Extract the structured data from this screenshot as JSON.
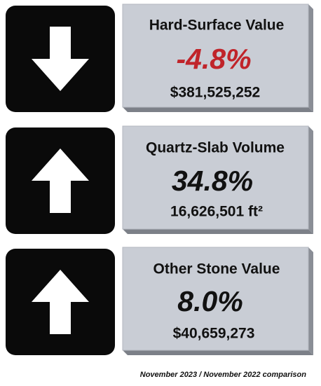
{
  "cards": [
    {
      "title": "Hard-Surface Value",
      "change": "-4.8%",
      "value": "$381,525,252"
    },
    {
      "title": "Quartz-Slab Volume",
      "change": "34.8%",
      "value": "16,626,501 ft²"
    },
    {
      "title": "Other Stone Value",
      "change": "8.0%",
      "value": "$40,659,273"
    }
  ],
  "footnote": "November 2023 / November 2022 comparison"
}
